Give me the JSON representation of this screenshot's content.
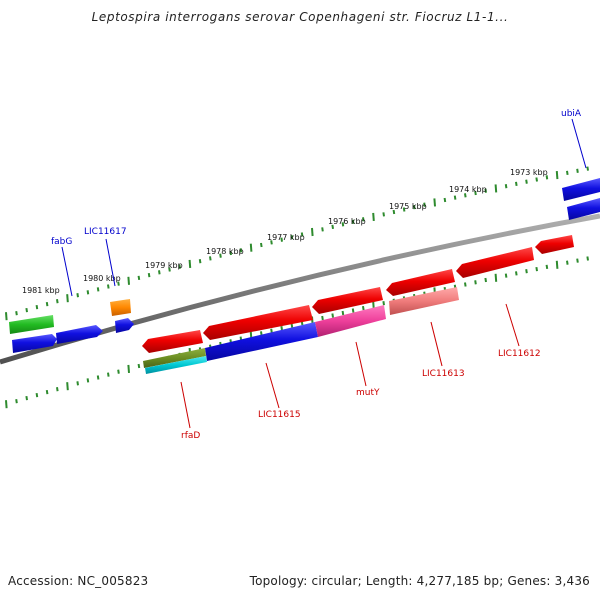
{
  "title": "Leptospira interrogans serovar Copenhageni str. Fiocruz L1-1...",
  "footer": {
    "accession": "Accession: NC_005823",
    "summary": "Topology: circular; Length: 4,277,185 bp; Genes: 3,436"
  },
  "scale_labels": [
    "1981 kbp",
    "1980 kbp",
    "1979 kbp",
    "1978 kbp",
    "1977 kbp",
    "1976 kbp",
    "1975 kbp",
    "1974 kbp",
    "1973 kbp"
  ],
  "gene_labels_outer": [
    "fabG",
    "LIC11617",
    "ubiA"
  ],
  "gene_labels_inner": [
    "rfaD",
    "LIC11615",
    "mutY",
    "LIC11613",
    "LIC11612"
  ],
  "colors": {
    "backbone": "#7a7a7a",
    "tick": "#2e8b2e",
    "forward_label": "#0000cc",
    "reverse_label": "#cc0000",
    "blue": "#1a1adf",
    "red": "#e00000",
    "green": "#33cc33",
    "orange": "#ff8c00",
    "pink": "#f04fa0",
    "salmon": "#f08080",
    "olive": "#6b8e23",
    "cyan": "#00c8d2"
  }
}
